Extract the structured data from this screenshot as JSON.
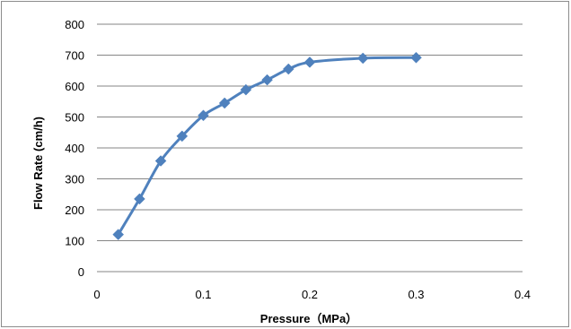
{
  "chart_data": {
    "type": "line",
    "title": "",
    "xlabel": "Pressure（MPa）",
    "ylabel": "Flow Rate (cm/h)",
    "xlim": [
      0,
      0.4
    ],
    "ylim": [
      0,
      800
    ],
    "x_ticks": [
      "0",
      "0.1",
      "0.2",
      "0.3",
      "0.4"
    ],
    "y_ticks": [
      "0",
      "100",
      "200",
      "300",
      "400",
      "500",
      "600",
      "700",
      "800"
    ],
    "grid": "horizontal major gridlines",
    "legend": "none",
    "marker": "diamond",
    "series": [
      {
        "color": "#4F81BD",
        "x": [
          0.02,
          0.04,
          0.06,
          0.08,
          0.1,
          0.12,
          0.14,
          0.16,
          0.18,
          0.2,
          0.25,
          0.3
        ],
        "y": [
          120,
          235,
          358,
          438,
          505,
          545,
          588,
          620,
          655,
          677,
          690,
          692
        ]
      }
    ]
  }
}
